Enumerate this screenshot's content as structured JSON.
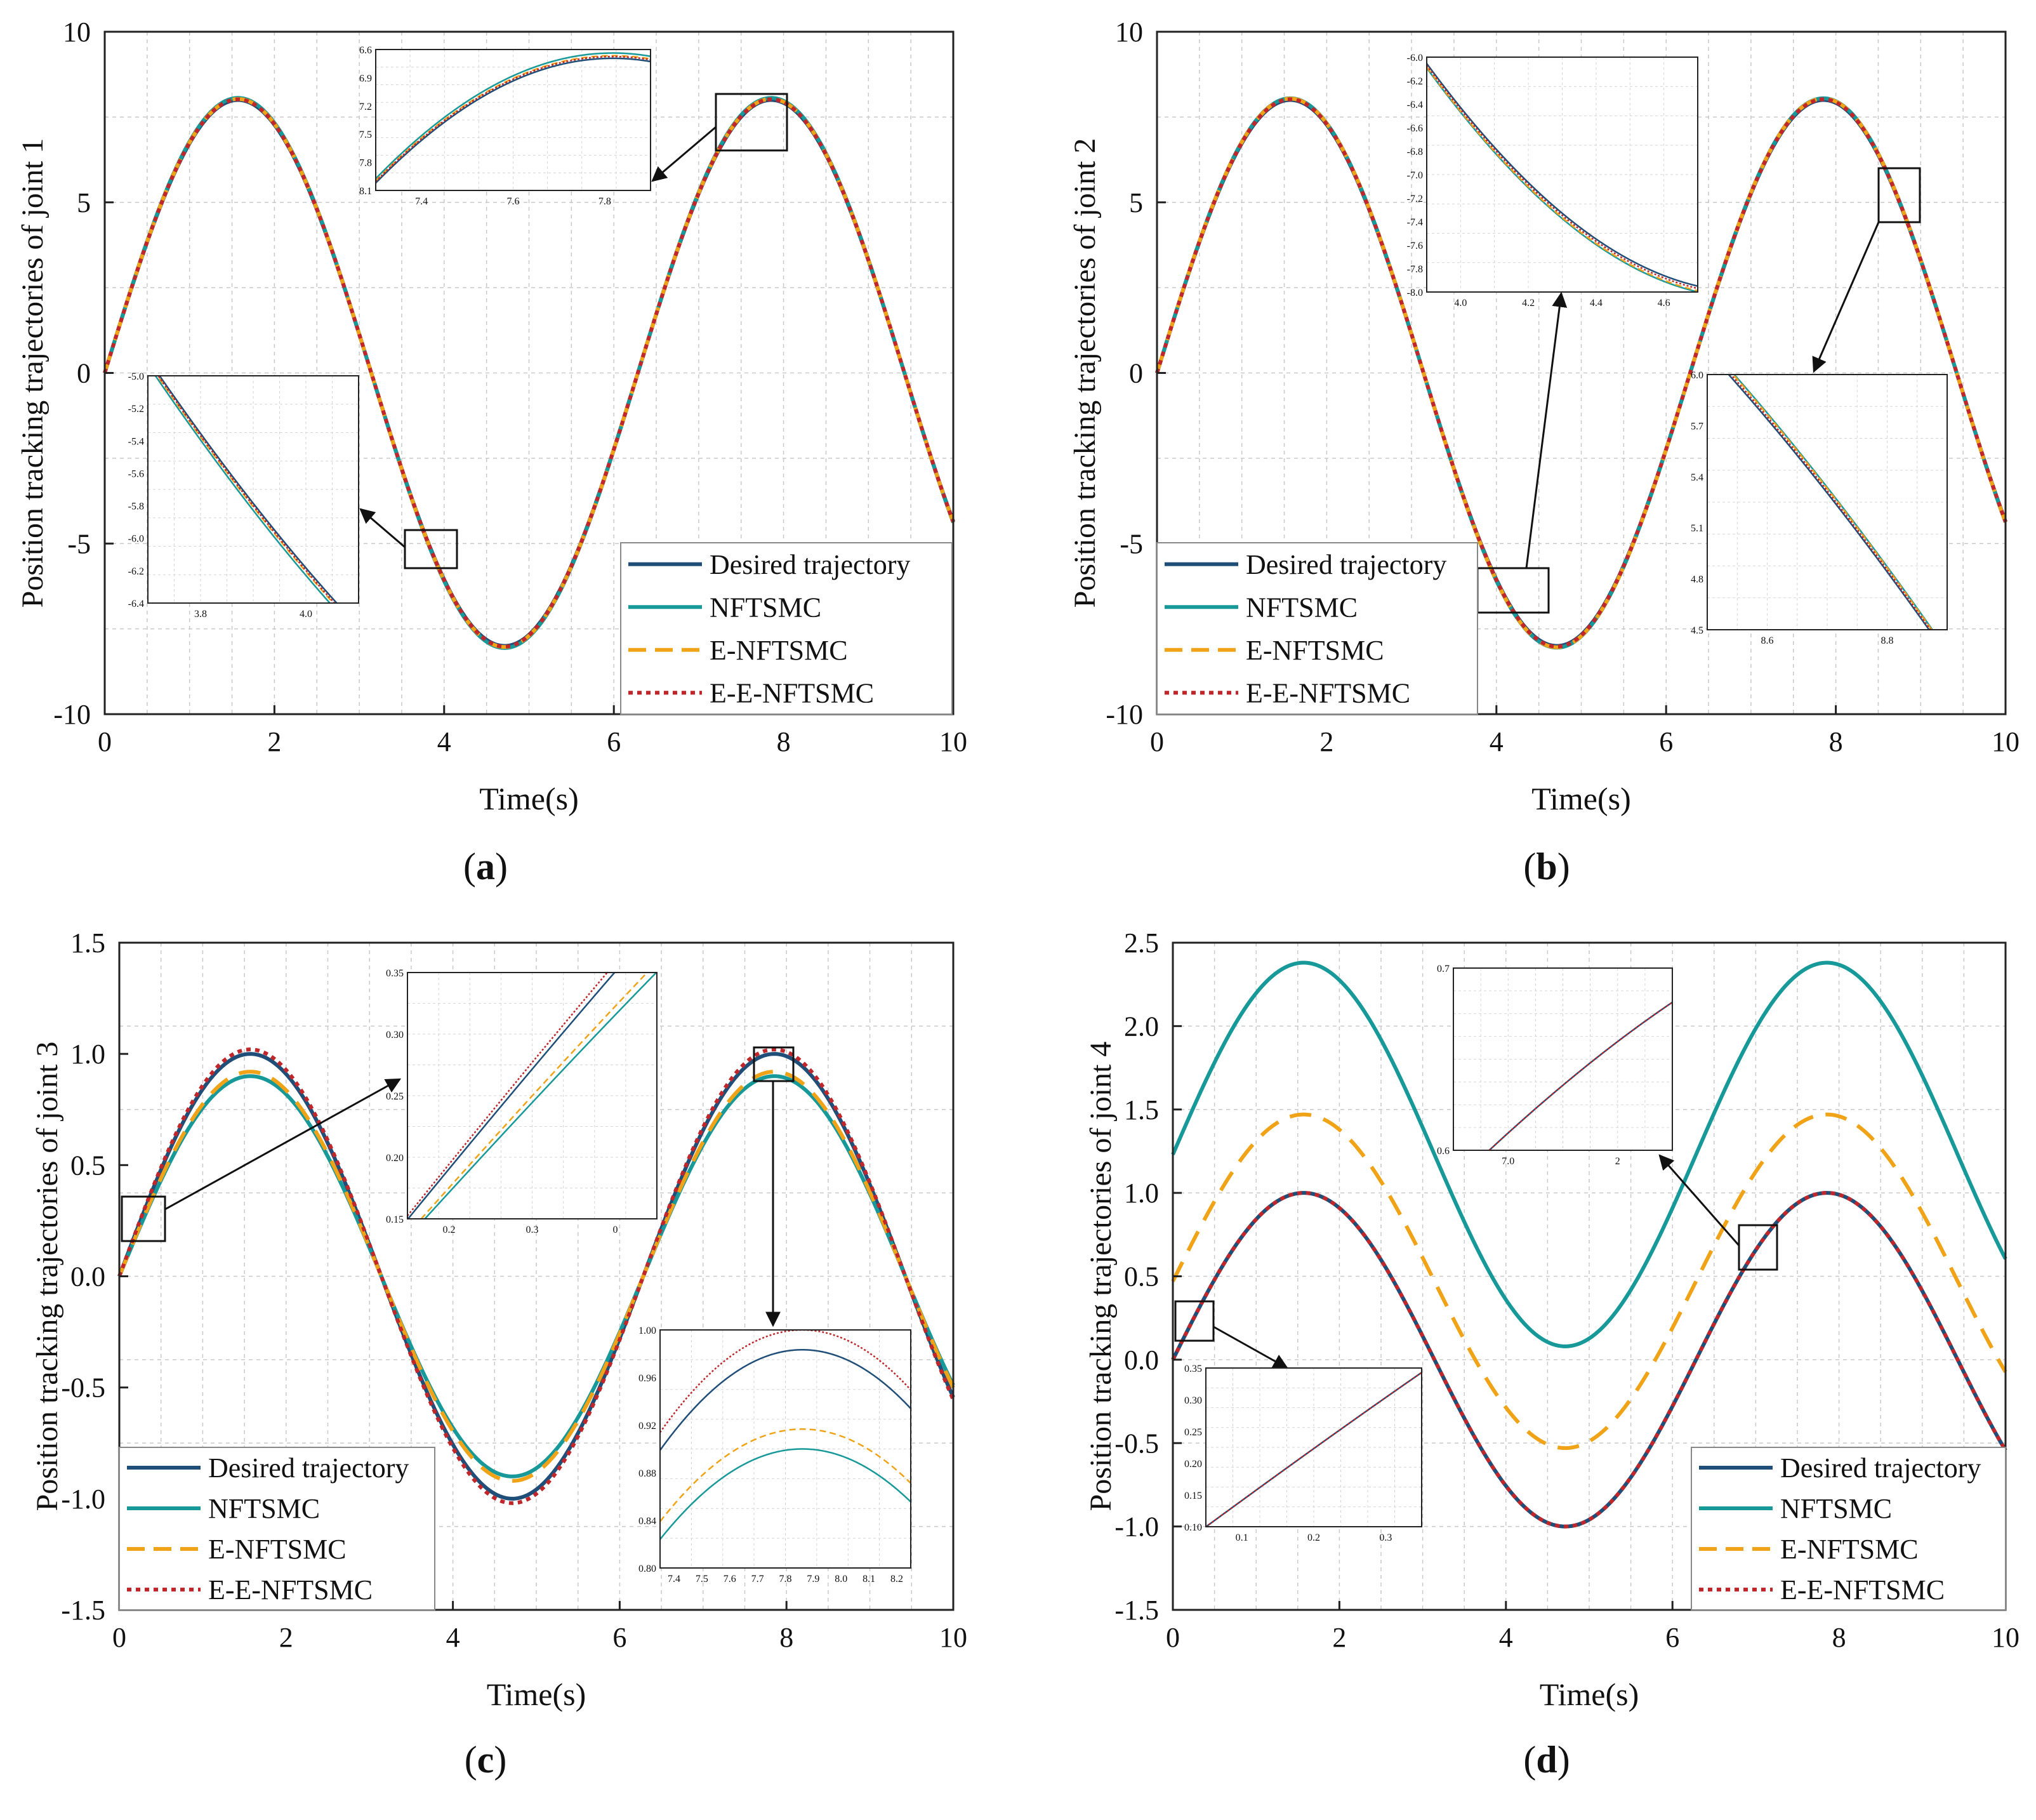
{
  "legend_labels": [
    "Desired trajectory",
    "NFTSMC",
    "E-NFTSMC",
    "E-E-NFTSMC"
  ],
  "series_colors": [
    "#1f4e79",
    "#17999a",
    "#f0a316",
    "#c0262a"
  ],
  "chart_data": [
    {
      "type": "line",
      "panel_label": "a",
      "xlabel": "Time(s)",
      "ylabel": "Position tracking trajectories of joint 1",
      "xlim": [
        0,
        10
      ],
      "ylim": [
        -10,
        10
      ],
      "xticks": [
        "0",
        "2",
        "4",
        "6",
        "8",
        "10"
      ],
      "yticks": [
        "-10",
        "-5",
        "0",
        "5",
        "10"
      ],
      "model": "y = A*sin(t)",
      "series": [
        {
          "name": "Desired trajectory",
          "amplitude": 8.0,
          "offset": 0.0
        },
        {
          "name": "NFTSMC",
          "amplitude": 8.06,
          "offset": 0.0
        },
        {
          "name": "E-NFTSMC",
          "amplitude": 8.03,
          "offset": 0.0
        },
        {
          "name": "E-E-NFTSMC",
          "amplitude": 8.02,
          "offset": 0.0
        }
      ],
      "zoom_boxes": [
        {
          "x_range": [
            7.25,
            7.95
          ],
          "y_range": [
            6.5,
            8.1
          ],
          "xticks": [
            "7.4",
            "7.6",
            "7.8"
          ],
          "yticks": [
            "6.6",
            "6.9",
            "7.2",
            "7.5",
            "7.8",
            "8.1"
          ]
        },
        {
          "x_range": [
            3.8,
            4.1
          ],
          "y_range": [
            -6.4,
            -5.0
          ],
          "xticks": [
            "3.8",
            "4.0"
          ],
          "yticks": [
            "-5.0",
            "-5.2",
            "-5.4",
            "-5.6",
            "-5.8",
            "-6.0",
            "-6.2",
            "-6.4"
          ]
        }
      ]
    },
    {
      "type": "line",
      "panel_label": "b",
      "xlabel": "Time(s)",
      "ylabel": "Position tracking trajectories of joint 2",
      "xlim": [
        0,
        10
      ],
      "ylim": [
        -10,
        10
      ],
      "xticks": [
        "0",
        "2",
        "4",
        "6",
        "8",
        "10"
      ],
      "yticks": [
        "-10",
        "-5",
        "0",
        "5",
        "10"
      ],
      "model": "y = A*sin(t)",
      "series": [
        {
          "name": "Desired trajectory",
          "amplitude": 8.0,
          "offset": 0.0
        },
        {
          "name": "NFTSMC",
          "amplitude": 8.05,
          "offset": 0.0
        },
        {
          "name": "E-NFTSMC",
          "amplitude": 8.04,
          "offset": 0.0
        },
        {
          "name": "E-E-NFTSMC",
          "amplitude": 8.02,
          "offset": 0.0
        }
      ],
      "zoom_boxes": [
        {
          "x_range": [
            4.0,
            4.6
          ],
          "y_range": [
            -8.0,
            -6.0
          ],
          "xticks": [
            "4.0",
            "4.2",
            "4.4",
            "4.6"
          ],
          "yticks": [
            "-6.0",
            "-6.2",
            "-6.4",
            "-6.6",
            "-6.8",
            "-7.0",
            "-7.2",
            "-7.4",
            "-7.6",
            "-7.8",
            "-8.0"
          ]
        },
        {
          "x_range": [
            8.55,
            8.85
          ],
          "y_range": [
            4.5,
            6.0
          ],
          "xticks": [
            "8.6",
            "8.8"
          ],
          "yticks": [
            "6.0",
            "5.7",
            "5.4",
            "5.1",
            "4.8",
            "4.5"
          ]
        }
      ]
    },
    {
      "type": "line",
      "panel_label": "c",
      "xlabel": "Time(s)",
      "ylabel": "Position tracking trajectories of joint 3",
      "xlim": [
        0,
        10
      ],
      "ylim": [
        -1.5,
        1.5
      ],
      "xticks": [
        "0",
        "2",
        "4",
        "6",
        "8",
        "10"
      ],
      "yticks": [
        "-1.5",
        "-1.0",
        "-0.5",
        "0.0",
        "0.5",
        "1.0",
        "1.5"
      ],
      "model": "y = A*sin(t)",
      "series": [
        {
          "name": "Desired trajectory",
          "amplitude": 1.0,
          "offset": 0.0
        },
        {
          "name": "NFTSMC",
          "amplitude": 0.9,
          "offset": 0.0
        },
        {
          "name": "E-NFTSMC",
          "amplitude": 0.92,
          "offset": 0.0
        },
        {
          "name": "E-E-NFTSMC",
          "amplitude": 1.02,
          "offset": 0.0
        }
      ],
      "zoom_boxes": [
        {
          "x_range": [
            0.15,
            0.4
          ],
          "y_range": [
            0.15,
            0.35
          ],
          "xticks": [
            "0.2",
            "0.3",
            "0"
          ],
          "yticks": [
            "0.35",
            "0.30",
            "0.25",
            "0.20",
            "0.15"
          ]
        },
        {
          "x_range": [
            7.4,
            8.2
          ],
          "y_range": [
            0.78,
            1.02
          ],
          "xticks": [
            "7.4",
            "7.5",
            "7.6",
            "7.7",
            "7.8",
            "7.9",
            "8.0",
            "8.1",
            "8.2"
          ],
          "yticks": [
            "1.00",
            "0.96",
            "0.92",
            "0.88",
            "0.84",
            "0.80"
          ]
        }
      ]
    },
    {
      "type": "line",
      "panel_label": "d",
      "xlabel": "Time(s)",
      "ylabel": "Position tracking trajectories of joint 4",
      "xlim": [
        0,
        10
      ],
      "ylim": [
        -1.5,
        2.5
      ],
      "xticks": [
        "0",
        "2",
        "4",
        "6",
        "8",
        "10"
      ],
      "yticks": [
        "-1.5",
        "-1.0",
        "-0.5",
        "0.0",
        "0.5",
        "1.0",
        "1.5",
        "2.0",
        "2.5"
      ],
      "model": "y = offset + A*sin(t)",
      "series": [
        {
          "name": "Desired trajectory",
          "amplitude": 1.0,
          "offset": 0.0
        },
        {
          "name": "NFTSMC",
          "amplitude": 1.15,
          "offset": 1.23
        },
        {
          "name": "E-NFTSMC",
          "amplitude": 1.0,
          "offset": 0.47
        },
        {
          "name": "E-E-NFTSMC",
          "amplitude": 1.0,
          "offset": 0.0
        }
      ],
      "zoom_boxes": [
        {
          "x_range": [
            6.8,
            7.2
          ],
          "y_range": [
            0.55,
            0.85
          ],
          "xticks": [
            "7.0",
            "2"
          ],
          "yticks": [
            "0.7",
            "0.6"
          ]
        },
        {
          "x_range": [
            0.1,
            0.35
          ],
          "y_range": [
            0.1,
            0.35
          ],
          "xticks": [
            "0.1",
            "0.2",
            "0.3"
          ],
          "yticks": [
            "0.35",
            "0.30",
            "0.25",
            "0.20",
            "0.15",
            "0.10"
          ]
        }
      ]
    }
  ]
}
